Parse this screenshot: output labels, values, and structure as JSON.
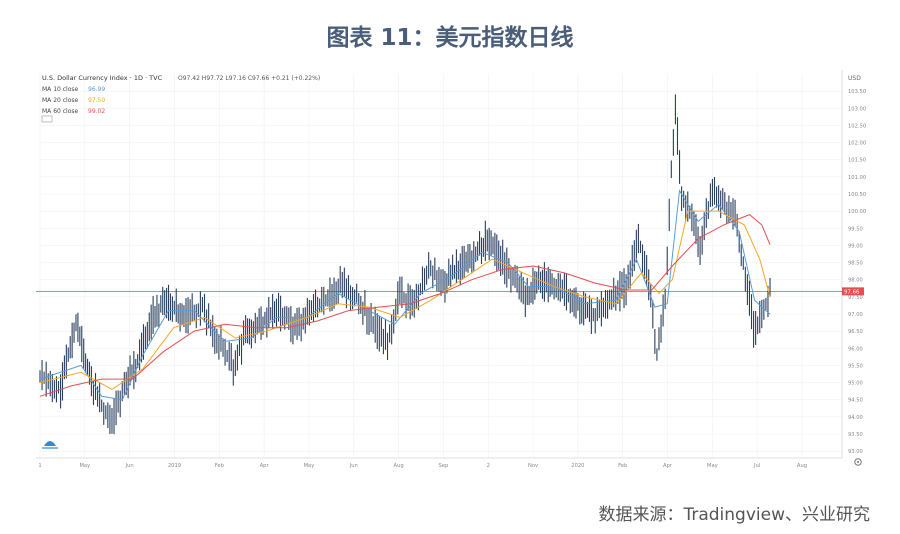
{
  "figure_title": "图表 11：美元指数日线",
  "source": "数据来源：Tradingview、兴业研究",
  "chart_data": {
    "type": "line",
    "title": "U.S. Dollar Currency Index · 1D · TVC",
    "ohlc_text": "O97.42 H97.72 L97.16 C97.66 +0.21 (+0.22%)",
    "indicators": [
      {
        "label": "MA 10 close",
        "value": "96.99",
        "color": "#5b9bd5"
      },
      {
        "label": "MA 20 close",
        "value": "97.50",
        "color": "#f5a623"
      },
      {
        "label": "MA 60 close",
        "value": "99.02",
        "color": "#e05050"
      }
    ],
    "y_currency": "USD",
    "ylim": [
      92.8,
      104.0
    ],
    "y_ticks": [
      "103.50",
      "103.00",
      "102.50",
      "102.00",
      "101.50",
      "101.00",
      "100.50",
      "100.00",
      "99.50",
      "99.00",
      "98.50",
      "98.00",
      "97.50",
      "97.00",
      "96.50",
      "96.00",
      "95.50",
      "95.00",
      "94.50",
      "94.00",
      "93.50",
      "93.00"
    ],
    "x_ticks": [
      "1",
      "May",
      "Jun",
      "2019",
      "Feb",
      "Apr",
      "May",
      "Jun",
      "Aug",
      "Sep",
      "2",
      "Nov",
      "2020",
      "Feb",
      "Apr",
      "May",
      "Jul",
      "Aug"
    ],
    "current_value": 97.66,
    "current_label": "97.66",
    "price": [
      {
        "x": 0,
        "y": 95.2
      },
      {
        "x": 20,
        "y": 94.8
      },
      {
        "x": 35,
        "y": 96.8
      },
      {
        "x": 50,
        "y": 95.0
      },
      {
        "x": 60,
        "y": 94.3
      },
      {
        "x": 70,
        "y": 93.9
      },
      {
        "x": 82,
        "y": 94.9
      },
      {
        "x": 95,
        "y": 95.6
      },
      {
        "x": 110,
        "y": 97.0
      },
      {
        "x": 125,
        "y": 97.4
      },
      {
        "x": 140,
        "y": 96.9
      },
      {
        "x": 158,
        "y": 97.2
      },
      {
        "x": 172,
        "y": 96.3
      },
      {
        "x": 188,
        "y": 95.5
      },
      {
        "x": 200,
        "y": 96.4
      },
      {
        "x": 215,
        "y": 96.7
      },
      {
        "x": 230,
        "y": 97.2
      },
      {
        "x": 248,
        "y": 96.6
      },
      {
        "x": 262,
        "y": 97.0
      },
      {
        "x": 278,
        "y": 97.4
      },
      {
        "x": 292,
        "y": 97.9
      },
      {
        "x": 308,
        "y": 97.5
      },
      {
        "x": 322,
        "y": 96.8
      },
      {
        "x": 338,
        "y": 96.2
      },
      {
        "x": 350,
        "y": 97.6
      },
      {
        "x": 364,
        "y": 97.2
      },
      {
        "x": 378,
        "y": 98.4
      },
      {
        "x": 392,
        "y": 97.8
      },
      {
        "x": 405,
        "y": 98.3
      },
      {
        "x": 420,
        "y": 98.6
      },
      {
        "x": 435,
        "y": 99.2
      },
      {
        "x": 448,
        "y": 98.7
      },
      {
        "x": 460,
        "y": 98.0
      },
      {
        "x": 472,
        "y": 97.5
      },
      {
        "x": 485,
        "y": 98.0
      },
      {
        "x": 498,
        "y": 97.9
      },
      {
        "x": 512,
        "y": 97.6
      },
      {
        "x": 525,
        "y": 97.2
      },
      {
        "x": 540,
        "y": 96.9
      },
      {
        "x": 556,
        "y": 97.5
      },
      {
        "x": 570,
        "y": 97.8
      },
      {
        "x": 582,
        "y": 99.2
      },
      {
        "x": 592,
        "y": 98.0
      },
      {
        "x": 600,
        "y": 95.8
      },
      {
        "x": 608,
        "y": 97.5
      },
      {
        "x": 614,
        "y": 101.2
      },
      {
        "x": 618,
        "y": 103.0
      },
      {
        "x": 624,
        "y": 100.5
      },
      {
        "x": 632,
        "y": 100.0
      },
      {
        "x": 642,
        "y": 99.0
      },
      {
        "x": 654,
        "y": 100.6
      },
      {
        "x": 664,
        "y": 100.2
      },
      {
        "x": 676,
        "y": 99.8
      },
      {
        "x": 686,
        "y": 98.2
      },
      {
        "x": 694,
        "y": 96.6
      },
      {
        "x": 702,
        "y": 96.9
      },
      {
        "x": 710,
        "y": 97.66
      }
    ],
    "ma_10": [
      {
        "x": 0,
        "y": 95.1
      },
      {
        "x": 40,
        "y": 95.5
      },
      {
        "x": 60,
        "y": 94.6
      },
      {
        "x": 80,
        "y": 94.5
      },
      {
        "x": 100,
        "y": 95.8
      },
      {
        "x": 125,
        "y": 97.1
      },
      {
        "x": 150,
        "y": 97.1
      },
      {
        "x": 180,
        "y": 96.2
      },
      {
        "x": 205,
        "y": 96.3
      },
      {
        "x": 230,
        "y": 96.9
      },
      {
        "x": 260,
        "y": 96.9
      },
      {
        "x": 290,
        "y": 97.6
      },
      {
        "x": 320,
        "y": 97.1
      },
      {
        "x": 345,
        "y": 96.7
      },
      {
        "x": 370,
        "y": 97.6
      },
      {
        "x": 400,
        "y": 98.1
      },
      {
        "x": 430,
        "y": 98.8
      },
      {
        "x": 455,
        "y": 98.5
      },
      {
        "x": 475,
        "y": 97.8
      },
      {
        "x": 500,
        "y": 97.8
      },
      {
        "x": 530,
        "y": 97.3
      },
      {
        "x": 560,
        "y": 97.4
      },
      {
        "x": 580,
        "y": 98.6
      },
      {
        "x": 598,
        "y": 97.2
      },
      {
        "x": 610,
        "y": 97.3
      },
      {
        "x": 622,
        "y": 100.6
      },
      {
        "x": 640,
        "y": 99.7
      },
      {
        "x": 660,
        "y": 100.2
      },
      {
        "x": 680,
        "y": 99.4
      },
      {
        "x": 695,
        "y": 97.4
      },
      {
        "x": 710,
        "y": 96.99
      }
    ],
    "ma_20": [
      {
        "x": 0,
        "y": 95.0
      },
      {
        "x": 40,
        "y": 95.3
      },
      {
        "x": 70,
        "y": 94.8
      },
      {
        "x": 100,
        "y": 95.4
      },
      {
        "x": 130,
        "y": 96.6
      },
      {
        "x": 160,
        "y": 96.9
      },
      {
        "x": 190,
        "y": 96.3
      },
      {
        "x": 220,
        "y": 96.5
      },
      {
        "x": 260,
        "y": 96.9
      },
      {
        "x": 290,
        "y": 97.3
      },
      {
        "x": 320,
        "y": 97.2
      },
      {
        "x": 350,
        "y": 96.9
      },
      {
        "x": 380,
        "y": 97.4
      },
      {
        "x": 410,
        "y": 98.0
      },
      {
        "x": 440,
        "y": 98.6
      },
      {
        "x": 470,
        "y": 98.2
      },
      {
        "x": 500,
        "y": 97.8
      },
      {
        "x": 530,
        "y": 97.5
      },
      {
        "x": 560,
        "y": 97.3
      },
      {
        "x": 585,
        "y": 98.2
      },
      {
        "x": 602,
        "y": 97.6
      },
      {
        "x": 615,
        "y": 98.0
      },
      {
        "x": 630,
        "y": 100.0
      },
      {
        "x": 660,
        "y": 100.0
      },
      {
        "x": 685,
        "y": 99.6
      },
      {
        "x": 700,
        "y": 98.6
      },
      {
        "x": 710,
        "y": 97.5
      }
    ],
    "ma_60": [
      {
        "x": 0,
        "y": 94.6
      },
      {
        "x": 30,
        "y": 94.9
      },
      {
        "x": 60,
        "y": 95.1
      },
      {
        "x": 90,
        "y": 95.1
      },
      {
        "x": 120,
        "y": 95.9
      },
      {
        "x": 150,
        "y": 96.5
      },
      {
        "x": 180,
        "y": 96.7
      },
      {
        "x": 210,
        "y": 96.6
      },
      {
        "x": 240,
        "y": 96.6
      },
      {
        "x": 270,
        "y": 96.8
      },
      {
        "x": 300,
        "y": 97.1
      },
      {
        "x": 330,
        "y": 97.2
      },
      {
        "x": 360,
        "y": 97.3
      },
      {
        "x": 390,
        "y": 97.6
      },
      {
        "x": 420,
        "y": 98.0
      },
      {
        "x": 450,
        "y": 98.3
      },
      {
        "x": 480,
        "y": 98.4
      },
      {
        "x": 510,
        "y": 98.2
      },
      {
        "x": 540,
        "y": 97.9
      },
      {
        "x": 570,
        "y": 97.7
      },
      {
        "x": 595,
        "y": 97.7
      },
      {
        "x": 615,
        "y": 98.4
      },
      {
        "x": 640,
        "y": 99.2
      },
      {
        "x": 665,
        "y": 99.6
      },
      {
        "x": 690,
        "y": 99.9
      },
      {
        "x": 702,
        "y": 99.6
      },
      {
        "x": 710,
        "y": 99.02
      }
    ],
    "x_range": [
      0,
      780
    ],
    "grid": true,
    "legend_position": "top-left"
  }
}
